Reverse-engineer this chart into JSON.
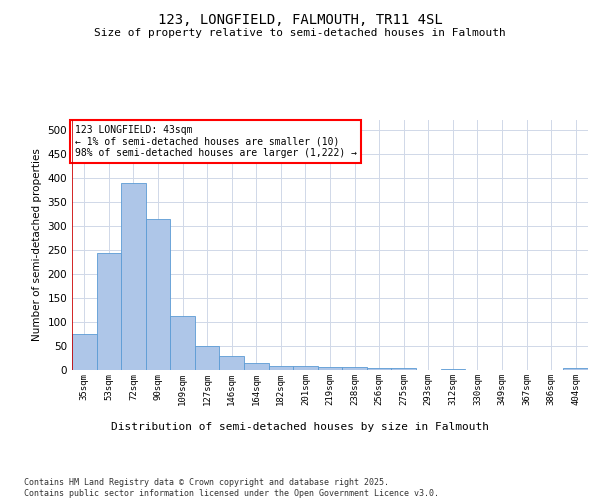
{
  "title_line1": "123, LONGFIELD, FALMOUTH, TR11 4SL",
  "title_line2": "Size of property relative to semi-detached houses in Falmouth",
  "xlabel": "Distribution of semi-detached houses by size in Falmouth",
  "ylabel": "Number of semi-detached properties",
  "footnote": "Contains HM Land Registry data © Crown copyright and database right 2025.\nContains public sector information licensed under the Open Government Licence v3.0.",
  "annotation_title": "123 LONGFIELD: 43sqm",
  "annotation_line2": "← 1% of semi-detached houses are smaller (10)",
  "annotation_line3": "98% of semi-detached houses are larger (1,222) →",
  "bar_labels": [
    "35sqm",
    "53sqm",
    "72sqm",
    "90sqm",
    "109sqm",
    "127sqm",
    "146sqm",
    "164sqm",
    "182sqm",
    "201sqm",
    "219sqm",
    "238sqm",
    "256sqm",
    "275sqm",
    "293sqm",
    "312sqm",
    "330sqm",
    "349sqm",
    "367sqm",
    "386sqm",
    "404sqm"
  ],
  "bar_values": [
    75,
    243,
    388,
    315,
    113,
    50,
    30,
    15,
    8,
    8,
    7,
    6,
    5,
    4,
    1,
    3,
    1,
    0,
    1,
    0,
    4
  ],
  "bar_color": "#aec6e8",
  "bar_edge_color": "#5b9bd5",
  "marker_color": "#cc0000",
  "ylim": [
    0,
    520
  ],
  "yticks": [
    0,
    50,
    100,
    150,
    200,
    250,
    300,
    350,
    400,
    450,
    500
  ],
  "background_color": "#ffffff",
  "grid_color": "#d0d8e8"
}
